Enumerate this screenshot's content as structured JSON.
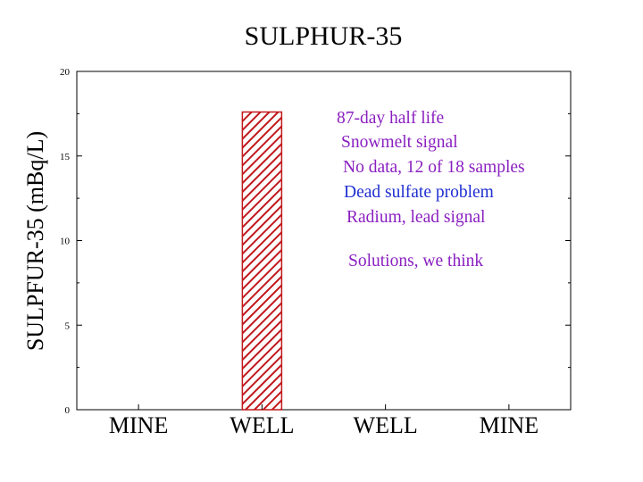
{
  "chart_data": {
    "type": "bar",
    "title": "SULPHUR-35",
    "ylabel": "SULPFUR-35 (mBq/L)",
    "xlabel": "",
    "categories": [
      "MINE",
      "WELL",
      "WELL",
      "MINE"
    ],
    "values": [
      null,
      17.6,
      null,
      null
    ],
    "ylim": [
      0,
      20
    ],
    "yticks": [
      0,
      5,
      10,
      15,
      20
    ],
    "bar_color": "#c0191d",
    "bar_pattern": "diagonal-hatch",
    "grid": false,
    "annotations": [
      {
        "text": "87-day half life",
        "color": "#8a1fc0"
      },
      {
        "text": "Snowmelt signal",
        "color": "#8a1fc0"
      },
      {
        "text": "No data, 12 of 18 samples",
        "color": "#8a1fc0"
      },
      {
        "text": "Dead sulfate problem",
        "color": "#1f2fd0"
      },
      {
        "text": "Radium, lead signal",
        "color": "#8a1fc0"
      },
      {
        "text": "Solutions, we think",
        "color": "#8a1fc0"
      }
    ]
  }
}
